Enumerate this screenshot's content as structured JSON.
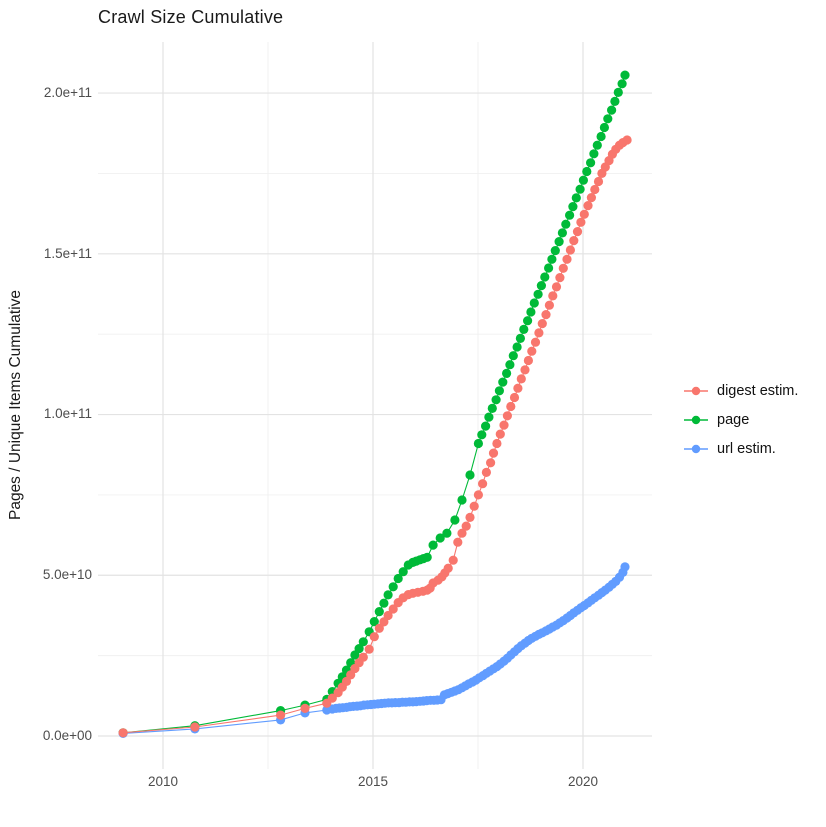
{
  "title": "Crawl Size Cumulative",
  "axes": {
    "y": {
      "label": "Pages / Unique Items Cumulative",
      "ticks": [
        "2.0e+11",
        "1.5e+11",
        "1.0e+11",
        "5.0e+10",
        "0.0e+00"
      ]
    },
    "x": {
      "ticks": [
        "2010",
        "2015",
        "2020"
      ]
    }
  },
  "legend": {
    "position": "right",
    "items": [
      {
        "label": "digest estim.",
        "color": "#F8766D"
      },
      {
        "label": "page",
        "color": "#00BA38"
      },
      {
        "label": "url estim.",
        "color": "#619CFF"
      }
    ]
  },
  "chart_data": {
    "type": "line",
    "title": "Crawl Size Cumulative",
    "xlabel": "",
    "ylabel": "Pages / Unique Items Cumulative",
    "marker": "point",
    "grid": true,
    "legend_position": "right",
    "x_axis": {
      "ticks": [
        2010,
        2015,
        2020
      ],
      "minor_ticks": [
        2012.5,
        2017.5
      ],
      "range": [
        2008.6,
        2021.7
      ]
    },
    "y_axis": {
      "tick_labels": [
        "0.0e+00",
        "5.0e+10",
        "1.0e+11",
        "1.5e+11",
        "2.0e+11"
      ],
      "ticks_value_billions": [
        0,
        50,
        100,
        150,
        200
      ],
      "minor_ticks_billions": [
        25,
        75,
        125,
        175
      ],
      "range_billions": [
        -10,
        216
      ]
    },
    "units": {
      "x": "year",
      "y": "billions of pages / unique items (1e9)"
    },
    "series": [
      {
        "name": "digest estim.",
        "color": "#F8766D",
        "points_year_billions": [
          [
            2009.05,
            1.0
          ],
          [
            2010.76,
            2.8
          ],
          [
            2012.8,
            6.5
          ],
          [
            2013.38,
            8.6
          ],
          [
            2013.9,
            10.2
          ],
          [
            2014.03,
            11.8
          ],
          [
            2014.17,
            13.5
          ],
          [
            2014.27,
            15.2
          ],
          [
            2014.37,
            17.0
          ],
          [
            2014.47,
            19.0
          ],
          [
            2014.57,
            21.0
          ],
          [
            2014.67,
            22.8
          ],
          [
            2014.77,
            24.5
          ],
          [
            2014.91,
            27.0
          ],
          [
            2015.03,
            30.9
          ],
          [
            2015.15,
            33.5
          ],
          [
            2015.26,
            35.5
          ],
          [
            2015.36,
            37.5
          ],
          [
            2015.48,
            39.5
          ],
          [
            2015.6,
            41.5
          ],
          [
            2015.72,
            43.0
          ],
          [
            2015.84,
            44.0
          ],
          [
            2015.95,
            44.4
          ],
          [
            2016.07,
            44.7
          ],
          [
            2016.19,
            45.0
          ],
          [
            2016.29,
            45.4
          ],
          [
            2016.36,
            46.0
          ],
          [
            2016.43,
            47.6
          ],
          [
            2016.55,
            48.5
          ],
          [
            2016.64,
            49.5
          ],
          [
            2016.71,
            50.7
          ],
          [
            2016.79,
            52.2
          ],
          [
            2016.91,
            54.7
          ],
          [
            2017.02,
            60.3
          ],
          [
            2017.12,
            63.1
          ],
          [
            2017.22,
            65.3
          ],
          [
            2017.31,
            68.0
          ],
          [
            2017.41,
            71.5
          ],
          [
            2017.51,
            75.0
          ],
          [
            2017.61,
            78.5
          ],
          [
            2017.7,
            82.0
          ],
          [
            2017.8,
            85.0
          ],
          [
            2017.87,
            88.0
          ],
          [
            2017.95,
            91.0
          ],
          [
            2018.03,
            93.9
          ],
          [
            2018.12,
            96.7
          ],
          [
            2018.2,
            99.6
          ],
          [
            2018.28,
            102.5
          ],
          [
            2018.37,
            105.3
          ],
          [
            2018.45,
            108.2
          ],
          [
            2018.53,
            111.1
          ],
          [
            2018.62,
            113.9
          ],
          [
            2018.7,
            116.8
          ],
          [
            2018.78,
            119.7
          ],
          [
            2018.87,
            122.5
          ],
          [
            2018.95,
            125.4
          ],
          [
            2019.03,
            128.3
          ],
          [
            2019.12,
            131.1
          ],
          [
            2019.2,
            134.0
          ],
          [
            2019.28,
            136.9
          ],
          [
            2019.37,
            139.7
          ],
          [
            2019.45,
            142.6
          ],
          [
            2019.53,
            145.5
          ],
          [
            2019.62,
            148.3
          ],
          [
            2019.7,
            151.2
          ],
          [
            2019.78,
            154.1
          ],
          [
            2019.87,
            156.9
          ],
          [
            2019.95,
            159.8
          ],
          [
            2020.03,
            162.3
          ],
          [
            2020.12,
            165.0
          ],
          [
            2020.2,
            167.5
          ],
          [
            2020.28,
            170.0
          ],
          [
            2020.37,
            172.5
          ],
          [
            2020.45,
            175.0
          ],
          [
            2020.53,
            177.0
          ],
          [
            2020.62,
            179.0
          ],
          [
            2020.7,
            181.0
          ],
          [
            2020.78,
            182.5
          ],
          [
            2020.87,
            183.8
          ],
          [
            2020.95,
            184.6
          ],
          [
            2021.05,
            185.4
          ]
        ]
      },
      {
        "name": "page",
        "color": "#00BA38",
        "points_year_billions": [
          [
            2009.05,
            1.0
          ],
          [
            2010.76,
            3.2
          ],
          [
            2012.8,
            7.9
          ],
          [
            2013.38,
            9.6
          ],
          [
            2013.9,
            11.4
          ],
          [
            2014.03,
            13.8
          ],
          [
            2014.17,
            16.4
          ],
          [
            2014.27,
            18.4
          ],
          [
            2014.37,
            20.5
          ],
          [
            2014.47,
            22.8
          ],
          [
            2014.57,
            25.2
          ],
          [
            2014.67,
            27.2
          ],
          [
            2014.77,
            29.3
          ],
          [
            2014.91,
            32.4
          ],
          [
            2015.03,
            35.6
          ],
          [
            2015.15,
            38.7
          ],
          [
            2015.26,
            41.3
          ],
          [
            2015.36,
            43.9
          ],
          [
            2015.48,
            46.4
          ],
          [
            2015.6,
            49.0
          ],
          [
            2015.72,
            51.1
          ],
          [
            2015.84,
            53.2
          ],
          [
            2015.95,
            54.0
          ],
          [
            2016.03,
            54.4
          ],
          [
            2016.12,
            54.8
          ],
          [
            2016.2,
            55.2
          ],
          [
            2016.29,
            55.6
          ],
          [
            2016.43,
            59.4
          ],
          [
            2016.6,
            61.6
          ],
          [
            2016.76,
            63.1
          ],
          [
            2016.95,
            67.2
          ],
          [
            2017.12,
            73.4
          ],
          [
            2017.31,
            81.2
          ],
          [
            2017.51,
            91.0
          ],
          [
            2017.59,
            93.7
          ],
          [
            2017.68,
            96.4
          ],
          [
            2017.76,
            99.2
          ],
          [
            2017.84,
            101.9
          ],
          [
            2017.93,
            104.6
          ],
          [
            2018.01,
            107.4
          ],
          [
            2018.09,
            110.1
          ],
          [
            2018.18,
            112.8
          ],
          [
            2018.26,
            115.5
          ],
          [
            2018.34,
            118.3
          ],
          [
            2018.43,
            121.0
          ],
          [
            2018.51,
            123.7
          ],
          [
            2018.59,
            126.5
          ],
          [
            2018.68,
            129.2
          ],
          [
            2018.76,
            131.9
          ],
          [
            2018.84,
            134.7
          ],
          [
            2018.93,
            137.4
          ],
          [
            2019.01,
            140.1
          ],
          [
            2019.09,
            142.8
          ],
          [
            2019.18,
            145.6
          ],
          [
            2019.26,
            148.3
          ],
          [
            2019.34,
            151.0
          ],
          [
            2019.43,
            153.8
          ],
          [
            2019.51,
            156.5
          ],
          [
            2019.59,
            159.2
          ],
          [
            2019.68,
            162.0
          ],
          [
            2019.76,
            164.7
          ],
          [
            2019.84,
            167.4
          ],
          [
            2019.93,
            170.1
          ],
          [
            2020.01,
            172.9
          ],
          [
            2020.09,
            175.6
          ],
          [
            2020.18,
            178.3
          ],
          [
            2020.26,
            181.1
          ],
          [
            2020.34,
            183.8
          ],
          [
            2020.43,
            186.5
          ],
          [
            2020.51,
            189.3
          ],
          [
            2020.59,
            192.0
          ],
          [
            2020.68,
            194.7
          ],
          [
            2020.76,
            197.4
          ],
          [
            2020.84,
            200.2
          ],
          [
            2020.93,
            202.9
          ],
          [
            2021.0,
            205.6
          ]
        ]
      },
      {
        "name": "url estim.",
        "color": "#619CFF",
        "points_year_billions": [
          [
            2009.05,
            0.8
          ],
          [
            2010.76,
            2.2
          ],
          [
            2012.8,
            5.0
          ],
          [
            2013.38,
            7.2
          ],
          [
            2013.9,
            8.1
          ],
          [
            2014.03,
            8.4
          ],
          [
            2014.12,
            8.6
          ],
          [
            2014.2,
            8.7
          ],
          [
            2014.28,
            8.8
          ],
          [
            2014.37,
            8.9
          ],
          [
            2014.45,
            9.1
          ],
          [
            2014.53,
            9.2
          ],
          [
            2014.62,
            9.3
          ],
          [
            2014.7,
            9.4
          ],
          [
            2014.78,
            9.6
          ],
          [
            2014.87,
            9.7
          ],
          [
            2014.95,
            9.8
          ],
          [
            2015.03,
            9.9
          ],
          [
            2015.12,
            10.0
          ],
          [
            2015.2,
            10.1
          ],
          [
            2015.28,
            10.2
          ],
          [
            2015.37,
            10.3
          ],
          [
            2015.45,
            10.3
          ],
          [
            2015.53,
            10.4
          ],
          [
            2015.62,
            10.4
          ],
          [
            2015.7,
            10.5
          ],
          [
            2015.78,
            10.5
          ],
          [
            2015.87,
            10.6
          ],
          [
            2015.95,
            10.6
          ],
          [
            2016.03,
            10.7
          ],
          [
            2016.12,
            10.8
          ],
          [
            2016.2,
            10.9
          ],
          [
            2016.28,
            11.0
          ],
          [
            2016.37,
            11.1
          ],
          [
            2016.45,
            11.1
          ],
          [
            2016.53,
            11.2
          ],
          [
            2016.62,
            11.3
          ],
          [
            2016.7,
            12.8
          ],
          [
            2016.78,
            13.2
          ],
          [
            2016.87,
            13.6
          ],
          [
            2016.95,
            14.0
          ],
          [
            2017.03,
            14.4
          ],
          [
            2017.12,
            15.0
          ],
          [
            2017.2,
            15.6
          ],
          [
            2017.28,
            16.2
          ],
          [
            2017.37,
            16.8
          ],
          [
            2017.45,
            17.4
          ],
          [
            2017.53,
            18.1
          ],
          [
            2017.62,
            18.8
          ],
          [
            2017.7,
            19.5
          ],
          [
            2017.78,
            20.2
          ],
          [
            2017.87,
            20.9
          ],
          [
            2017.95,
            21.6
          ],
          [
            2018.03,
            22.4
          ],
          [
            2018.12,
            23.3
          ],
          [
            2018.2,
            24.2
          ],
          [
            2018.28,
            25.2
          ],
          [
            2018.37,
            26.2
          ],
          [
            2018.45,
            27.2
          ],
          [
            2018.53,
            28.1
          ],
          [
            2018.62,
            28.9
          ],
          [
            2018.7,
            29.7
          ],
          [
            2018.78,
            30.4
          ],
          [
            2018.87,
            31.0
          ],
          [
            2018.95,
            31.6
          ],
          [
            2019.03,
            32.1
          ],
          [
            2019.12,
            32.7
          ],
          [
            2019.2,
            33.3
          ],
          [
            2019.28,
            33.9
          ],
          [
            2019.37,
            34.5
          ],
          [
            2019.45,
            35.2
          ],
          [
            2019.53,
            35.9
          ],
          [
            2019.62,
            36.7
          ],
          [
            2019.7,
            37.5
          ],
          [
            2019.78,
            38.3
          ],
          [
            2019.87,
            39.1
          ],
          [
            2019.95,
            39.9
          ],
          [
            2020.03,
            40.6
          ],
          [
            2020.12,
            41.4
          ],
          [
            2020.2,
            42.2
          ],
          [
            2020.28,
            43.0
          ],
          [
            2020.37,
            43.8
          ],
          [
            2020.45,
            44.6
          ],
          [
            2020.53,
            45.4
          ],
          [
            2020.62,
            46.3
          ],
          [
            2020.7,
            47.2
          ],
          [
            2020.78,
            48.1
          ],
          [
            2020.87,
            49.4
          ],
          [
            2020.95,
            50.9
          ],
          [
            2021.0,
            52.6
          ]
        ]
      }
    ]
  }
}
